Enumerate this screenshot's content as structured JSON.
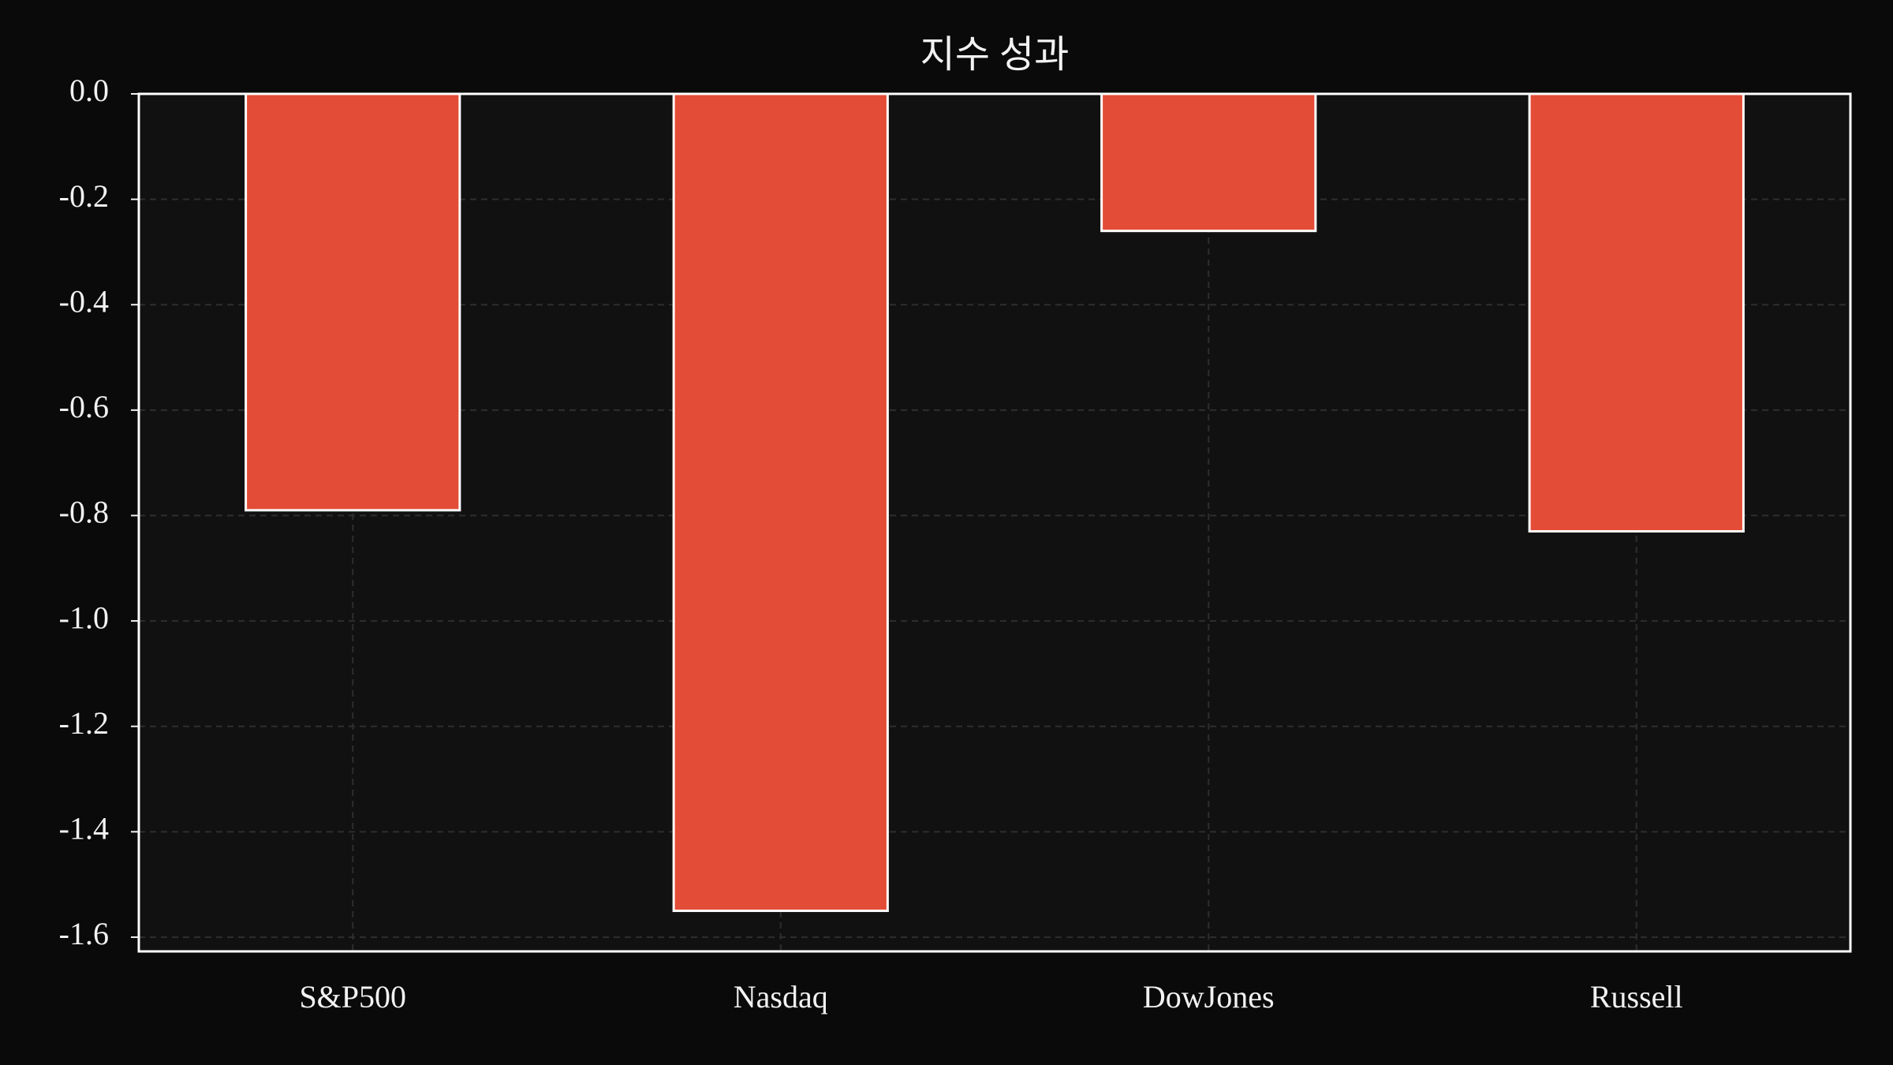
{
  "chart_data": {
    "type": "bar",
    "title": "지수 성과",
    "categories": [
      "S&P500",
      "Nasdaq",
      "DowJones",
      "Russell"
    ],
    "values": [
      -0.79,
      -1.55,
      -0.26,
      -0.83
    ],
    "color": "#e34c36",
    "ylim": [
      -1.627,
      0
    ],
    "yticks": [
      {
        "value": 0,
        "label": "0.0"
      },
      -0.2,
      -0.4,
      -0.6,
      -0.8,
      {
        "value": -1,
        "label": "-1.0"
      },
      -1.2,
      -1.4,
      -1.6
    ],
    "grid": true
  }
}
